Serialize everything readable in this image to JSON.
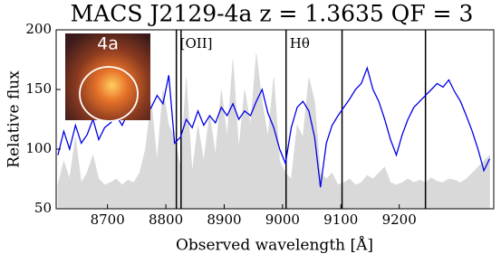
{
  "chart_data": {
    "type": "line",
    "title": "MACS J2129-4a z = 1.3635 QF = 3",
    "x_label": "Observed wavelength  [Å]",
    "y_label": "Relative flux",
    "inset_label": "4a",
    "xlim": [
      8612,
      9362
    ],
    "xticks": [
      8700,
      8800,
      8900,
      9000,
      9100,
      9200
    ],
    "ylim": [
      50,
      200
    ],
    "yticks": [
      50,
      100,
      150,
      200
    ],
    "x": [
      8615,
      8625,
      8635,
      8645,
      8655,
      8665,
      8675,
      8685,
      8695,
      8705,
      8715,
      8725,
      8735,
      8745,
      8755,
      8765,
      8775,
      8785,
      8795,
      8805,
      8815,
      8825,
      8835,
      8845,
      8855,
      8865,
      8875,
      8885,
      8895,
      8905,
      8915,
      8925,
      8935,
      8945,
      8955,
      8965,
      8975,
      8985,
      8995,
      9005,
      9015,
      9025,
      9035,
      9045,
      9055,
      9065,
      9075,
      9085,
      9095,
      9105,
      9115,
      9125,
      9135,
      9145,
      9155,
      9165,
      9175,
      9185,
      9195,
      9205,
      9215,
      9225,
      9235,
      9245,
      9255,
      9265,
      9275,
      9285,
      9295,
      9305,
      9315,
      9325,
      9335,
      9345,
      9355
    ],
    "error": {
      "color": "#d9d9d9",
      "values": [
        70,
        90,
        75,
        110,
        72,
        80,
        95,
        75,
        70,
        72,
        75,
        70,
        74,
        72,
        80,
        100,
        140,
        90,
        150,
        120,
        110,
        85,
        160,
        80,
        120,
        90,
        130,
        95,
        150,
        110,
        175,
        100,
        150,
        120,
        180,
        140,
        110,
        160,
        90,
        80,
        75,
        120,
        110,
        160,
        140,
        80,
        75,
        80,
        70,
        72,
        75,
        70,
        72,
        78,
        75,
        80,
        85,
        72,
        70,
        72,
        75,
        72,
        74,
        72,
        76,
        73,
        72,
        75,
        74,
        72,
        75,
        80,
        85,
        90,
        95
      ]
    },
    "flux": {
      "color": "#0000e6",
      "values": [
        95,
        115,
        100,
        120,
        105,
        112,
        125,
        108,
        118,
        122,
        128,
        120,
        130,
        125,
        140,
        128,
        135,
        145,
        138,
        162,
        105,
        110,
        125,
        118,
        132,
        120,
        128,
        122,
        135,
        128,
        138,
        125,
        132,
        128,
        140,
        150,
        130,
        118,
        100,
        88,
        118,
        135,
        140,
        132,
        110,
        68,
        105,
        120,
        128,
        135,
        142,
        150,
        155,
        168,
        150,
        140,
        125,
        108,
        95,
        112,
        125,
        135,
        140,
        145,
        150,
        155,
        152,
        158,
        148,
        140,
        128,
        115,
        100,
        82,
        92
      ]
    },
    "vlines": [
      {
        "x": 8818,
        "label": "[OII]"
      },
      {
        "x": 8826
      },
      {
        "x": 9006,
        "label": "Hθ"
      },
      {
        "x": 9102
      },
      {
        "x": 9245
      }
    ]
  }
}
